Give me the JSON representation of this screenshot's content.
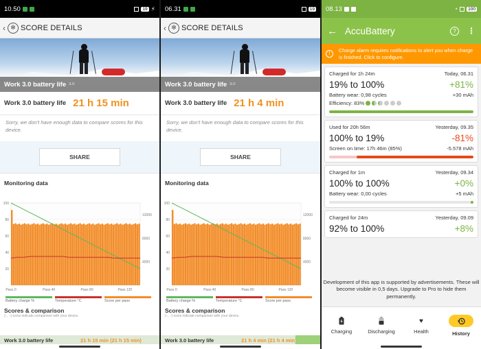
{
  "screens": [
    {
      "status_time": "10.50",
      "battery_badge": "19",
      "header_title": "SCORE DETAILS",
      "hero_caption": "Work 3.0 battery life",
      "hero_version": "3.0",
      "result_label": "Work 3.0 battery life",
      "result_value": "21 h 15 min",
      "note": "Sorry, we don't have enough data to compare scores for this device.",
      "share_label": "SHARE",
      "monitoring_title": "Monitoring data",
      "scores_title": "Scores & comparison",
      "scores_sub": "(↑, ↑) icons indicate comparison with your device.",
      "peek_label": "Work 3.0 battery life",
      "peek_value": "21 h 15 min (21 h 15 min)"
    },
    {
      "status_time": "06.31",
      "battery_badge": "19",
      "header_title": "SCORE DETAILS",
      "hero_caption": "Work 3.0 battery life",
      "hero_version": "3.0",
      "result_label": "Work 3.0 battery life",
      "result_value": "21 h 4 min",
      "note": "Sorry, we don't have enough data to compare scores for this device.",
      "share_label": "SHARE",
      "monitoring_title": "Monitoring data",
      "scores_title": "Scores & comparison",
      "scores_sub": "(↑, ↑) icons indicate comparison with your device.",
      "peek_label": "Work 3.0 battery life",
      "peek_value": "21 h 4 min (21 h 4 min)"
    }
  ],
  "chart_data": [
    {
      "type": "area",
      "y_left_ticks": [
        "100",
        "80",
        "60",
        "40",
        "20"
      ],
      "y_right_ticks": [
        "12000",
        "8000",
        "4000"
      ],
      "x_ticks": [
        "Pass 0",
        "Pass 40",
        "Pass 80",
        "Pass 120"
      ],
      "series": [
        {
          "name": "Battery charge %",
          "color": "#5cb85c",
          "values": [
            100,
            96,
            92,
            88,
            84,
            80,
            76,
            72,
            68,
            64,
            60,
            56,
            52,
            48,
            44,
            40,
            36,
            32,
            28,
            24,
            20
          ]
        },
        {
          "name": "Temperature °C",
          "color": "#c9302c",
          "values": [
            33,
            34,
            34,
            35,
            35,
            35,
            35,
            35,
            35,
            34,
            34,
            34,
            34,
            34,
            34,
            34,
            33,
            33,
            33,
            33,
            33
          ]
        },
        {
          "name": "Score per pass",
          "color": "#f28c28",
          "values": [
            12800,
            10400,
            10500,
            10450,
            10400,
            10500,
            10450,
            10400,
            10450,
            10500,
            10400,
            10450,
            10500,
            10450,
            10400,
            10450,
            10500,
            10400,
            10450,
            10500,
            10400
          ]
        }
      ]
    },
    {
      "type": "area",
      "y_left_ticks": [
        "100",
        "80",
        "60",
        "40",
        "20"
      ],
      "y_right_ticks": [
        "12000",
        "8000",
        "4000"
      ],
      "x_ticks": [
        "Pass 0",
        "Pass 40",
        "Pass 80",
        "Pass 120"
      ],
      "series": [
        {
          "name": "Battery charge %",
          "color": "#5cb85c",
          "values": [
            100,
            96,
            92,
            88,
            84,
            80,
            76,
            72,
            68,
            64,
            60,
            56,
            52,
            48,
            44,
            40,
            36,
            32,
            28,
            24,
            20
          ]
        },
        {
          "name": "Temperature °C",
          "color": "#c9302c",
          "values": [
            33,
            34,
            34,
            35,
            35,
            35,
            35,
            35,
            34,
            34,
            34,
            34,
            34,
            34,
            34,
            33,
            33,
            33,
            33,
            33,
            33
          ]
        },
        {
          "name": "Score per pass",
          "color": "#f28c28",
          "values": [
            12800,
            10400,
            10450,
            10400,
            10500,
            10450,
            10400,
            10450,
            10500,
            10400,
            10450,
            10500,
            10400,
            10450,
            10500,
            10400,
            10450,
            10400,
            10450,
            10500,
            10400
          ]
        }
      ]
    }
  ],
  "accu": {
    "status_time": "08.13",
    "battery_badge": "100",
    "title": "AccuBattery",
    "alarm": "Charge alarm requires notifications to alert you when charge is finished. Click to configure.",
    "cards": [
      {
        "caption": "Charged for 1h 24m",
        "date": "Today, 06.31",
        "range": "19% to 100%",
        "delta": "+81%",
        "line1": "Battery wear: 0,98 cycles",
        "line1_right": "+30 mAh",
        "line2": "Efficiency: 83%",
        "bar_color": "#7cb342",
        "bar_start": 0.0,
        "bar_end": 1.0
      },
      {
        "caption": "Used for 20h 56m",
        "date": "Yesterday, 09.35",
        "range": "100% to 19%",
        "delta": "-81%",
        "line1": "Screen on time: 17h 46m (85%)",
        "line1_right": "-5.578 mAh",
        "bar_color": "#e64a19",
        "bar_start": 0.19,
        "bar_end": 1.0
      },
      {
        "caption": "Charged for 1m",
        "date": "Yesterday, 09.34",
        "range": "100% to 100%",
        "delta": "+0%",
        "line1": "Battery wear: 0,00 cycles",
        "line1_right": "+5 mAh",
        "bar_color": "#7cb342",
        "bar_start": 0.98,
        "bar_end": 1.0
      },
      {
        "caption": "Charged for 24m",
        "date": "Yesterday, 09.09",
        "range": "92% to 100%",
        "delta": "+8%"
      }
    ],
    "promo": "Development of this app is supported by advertisements. These will become visible in 0,5 days. Upgrade to Pro to hide them permanently.",
    "nav": [
      {
        "label": "Charging",
        "icon": "battery-charging-icon"
      },
      {
        "label": "Discharging",
        "icon": "battery-half-icon"
      },
      {
        "label": "Health",
        "icon": "heart-icon"
      },
      {
        "label": "History",
        "icon": "history-icon"
      }
    ],
    "colors": {
      "accent": "#8bc34a",
      "alarm": "#ff9800",
      "active_pill": "#ffc928"
    }
  }
}
